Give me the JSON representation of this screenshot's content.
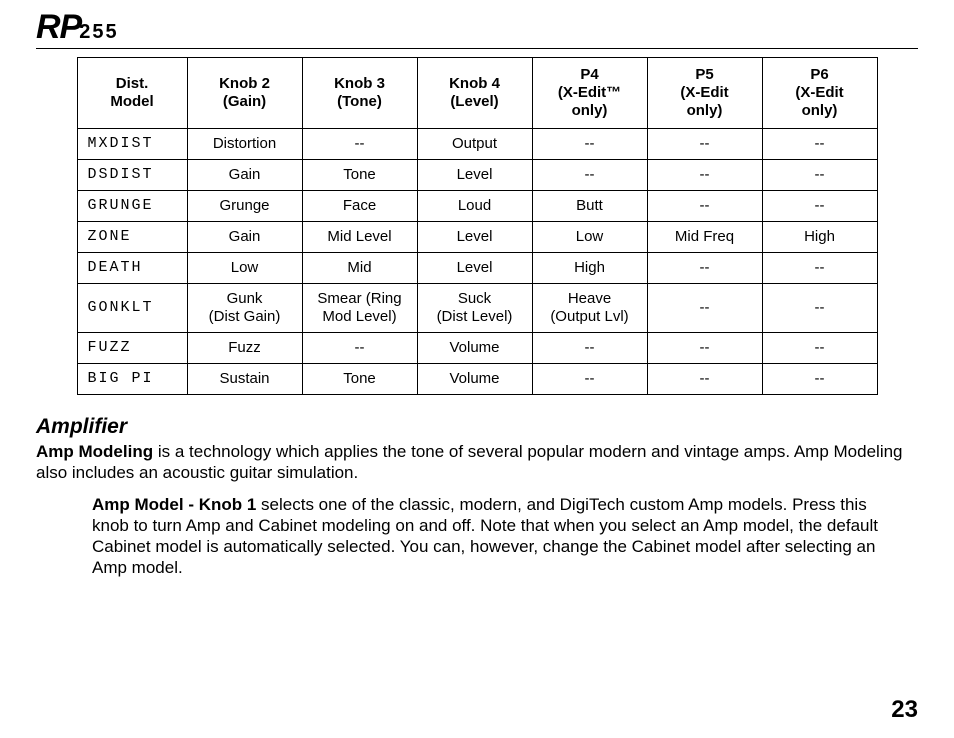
{
  "logo": {
    "main": "RP",
    "sub": "255"
  },
  "table": {
    "headers": [
      "Dist.\nModel",
      "Knob 2\n(Gain)",
      "Knob 3\n(Tone)",
      "Knob 4\n(Level)",
      "P4\n(X-Edit™\nonly)",
      "P5\n(X-Edit\nonly)",
      "P6\n(X-Edit\nonly)"
    ],
    "rows": [
      {
        "model": "MXDIST",
        "cells": [
          "Distortion",
          "--",
          "Output",
          "--",
          "--",
          "--"
        ]
      },
      {
        "model": "DSDIST",
        "cells": [
          "Gain",
          "Tone",
          "Level",
          "--",
          "--",
          "--"
        ]
      },
      {
        "model": "GRUNGE",
        "cells": [
          "Grunge",
          "Face",
          "Loud",
          "Butt",
          "--",
          "--"
        ]
      },
      {
        "model": "ZONE",
        "cells": [
          "Gain",
          "Mid Level",
          "Level",
          "Low",
          "Mid Freq",
          "High"
        ]
      },
      {
        "model": "DEATH",
        "cells": [
          "Low",
          "Mid",
          "Level",
          "High",
          "--",
          "--"
        ]
      },
      {
        "model": "GONKLT",
        "cells": [
          "Gunk\n(Dist Gain)",
          "Smear (Ring\nMod Level)",
          "Suck\n(Dist Level)",
          "Heave\n(Output Lvl)",
          "--",
          "--"
        ]
      },
      {
        "model": "FUZZ",
        "cells": [
          "Fuzz",
          "--",
          "Volume",
          "--",
          "--",
          "--"
        ]
      },
      {
        "model": "BIG PI",
        "cells": [
          "Sustain",
          "Tone",
          "Volume",
          "--",
          "--",
          "--"
        ]
      }
    ]
  },
  "section": {
    "title": "Amplifier",
    "intro_bold": "Amp Modeling",
    "intro_rest": " is a technology which applies the tone of several popular modern and vintage amps.  Amp Modeling also includes an acoustic guitar simulation.",
    "sub_bold": "Amp Model - Knob 1",
    "sub_rest": " selects one of the classic, modern, and DigiTech custom Amp models.  Press this knob to turn Amp and Cabinet modeling on and off. Note that when you select an Amp model, the default Cabinet model is automatically selected.  You can, however, change the Cabinet model after selecting an Amp model."
  },
  "page_number": "23"
}
